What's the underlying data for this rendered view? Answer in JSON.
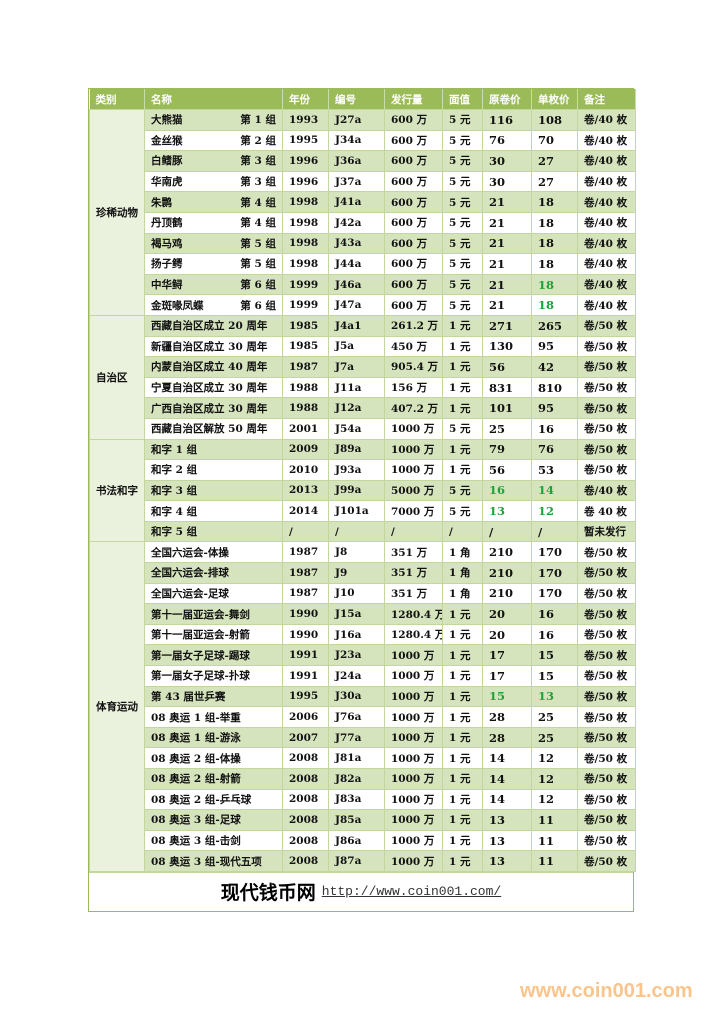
{
  "headers": [
    "类别",
    "名称",
    "年份",
    "编号",
    "发行量",
    "面值",
    "原卷价",
    "单枚价",
    "备注"
  ],
  "groups": [
    {
      "category": "珍稀动物",
      "rows": [
        {
          "name": "大熊猫",
          "set": "第 1 组",
          "year": "1993",
          "code": "J27a",
          "issue": "600 万",
          "face": "5 元",
          "roll": "116",
          "single": "108",
          "note": "卷/40 枚"
        },
        {
          "name": "金丝猴",
          "set": "第 2 组",
          "year": "1995",
          "code": "J34a",
          "issue": "600 万",
          "face": "5 元",
          "roll": "76",
          "single": "70",
          "note": "卷/40 枚"
        },
        {
          "name": "白鳍豚",
          "set": "第 3 组",
          "year": "1996",
          "code": "J36a",
          "issue": "600 万",
          "face": "5 元",
          "roll": "30",
          "single": "27",
          "note": "卷/40 枚"
        },
        {
          "name": "华南虎",
          "set": "第 3 组",
          "year": "1996",
          "code": "J37a",
          "issue": "600 万",
          "face": "5 元",
          "roll": "30",
          "single": "27",
          "note": "卷/40 枚"
        },
        {
          "name": "朱鹮",
          "set": "第 4 组",
          "year": "1998",
          "code": "J41a",
          "issue": "600 万",
          "face": "5 元",
          "roll": "21",
          "single": "18",
          "note": "卷/40 枚"
        },
        {
          "name": "丹顶鹤",
          "set": "第 4 组",
          "year": "1998",
          "code": "J42a",
          "issue": "600 万",
          "face": "5 元",
          "roll": "21",
          "single": "18",
          "note": "卷/40 枚"
        },
        {
          "name": "褐马鸡",
          "set": "第 5 组",
          "year": "1998",
          "code": "J43a",
          "issue": "600 万",
          "face": "5 元",
          "roll": "21",
          "single": "18",
          "note": "卷/40 枚"
        },
        {
          "name": "扬子鳄",
          "set": "第 5 组",
          "year": "1998",
          "code": "J44a",
          "issue": "600 万",
          "face": "5 元",
          "roll": "21",
          "single": "18",
          "note": "卷/40 枚"
        },
        {
          "name": "中华鲟",
          "set": "第 6 组",
          "year": "1999",
          "code": "J46a",
          "issue": "600 万",
          "face": "5 元",
          "roll": "21",
          "single": "18",
          "note": "卷/40 枚",
          "hi_single": true
        },
        {
          "name": "金斑喙凤蝶",
          "set": "第 6 组",
          "year": "1999",
          "code": "J47a",
          "issue": "600 万",
          "face": "5 元",
          "roll": "21",
          "single": "18",
          "note": "卷/40 枚",
          "hi_single": true
        }
      ]
    },
    {
      "category": "自治区",
      "rows": [
        {
          "name": "西藏自治区成立 20 周年",
          "year": "1985",
          "code": "J4a1",
          "issue": "261.2 万",
          "face": "1 元",
          "roll": "271",
          "single": "265",
          "note": "卷/50 枚"
        },
        {
          "name": "新疆自治区成立 30 周年",
          "year": "1985",
          "code": "J5a",
          "issue": "450 万",
          "face": "1 元",
          "roll": "130",
          "single": "95",
          "note": "卷/50 枚"
        },
        {
          "name": "内蒙自治区成立 40 周年",
          "year": "1987",
          "code": "J7a",
          "issue": "905.4 万",
          "face": "1 元",
          "roll": "56",
          "single": "42",
          "note": "卷/50 枚"
        },
        {
          "name": "宁夏自治区成立 30 周年",
          "year": "1988",
          "code": "J11a",
          "issue": "156 万",
          "face": "1 元",
          "roll": "831",
          "single": "810",
          "note": "卷/50 枚"
        },
        {
          "name": "广西自治区成立 30 周年",
          "year": "1988",
          "code": "J12a",
          "issue": "407.2 万",
          "face": "1 元",
          "roll": "101",
          "single": "95",
          "note": "卷/50 枚"
        },
        {
          "name": "西藏自治区解放 50 周年",
          "year": "2001",
          "code": "J54a",
          "issue": "1000 万",
          "face": "5 元",
          "roll": "25",
          "single": "16",
          "note": "卷/50 枚"
        }
      ]
    },
    {
      "category": "书法和字",
      "rows": [
        {
          "name": "和字 1 组",
          "year": "2009",
          "code": "J89a",
          "issue": "1000 万",
          "face": "1 元",
          "roll": "79",
          "single": "76",
          "note": "卷/50 枚"
        },
        {
          "name": "和字 2 组",
          "year": "2010",
          "code": "J93a",
          "issue": "1000 万",
          "face": "1 元",
          "roll": "56",
          "single": "53",
          "note": "卷/50 枚"
        },
        {
          "name": "和字 3 组",
          "year": "2013",
          "code": "J99a",
          "issue": "5000 万",
          "face": "5 元",
          "roll": "16",
          "single": "14",
          "note": "卷/40 枚",
          "hi_roll": true,
          "hi_single": true
        },
        {
          "name": "和字 4 组",
          "year": "2014",
          "code": "J101a",
          "issue": "7000 万",
          "face": "5 元",
          "roll": "13",
          "single": "12",
          "note": "卷 40 枚",
          "hi_roll": true,
          "hi_single": true
        },
        {
          "name": "和字 5 组",
          "year": "/",
          "code": "/",
          "issue": "/",
          "face": "/",
          "roll": "/",
          "single": "/",
          "note": "暂未发行"
        }
      ]
    },
    {
      "category": "体育运动",
      "rows": [
        {
          "name": "全国六运会-体操",
          "year": "1987",
          "code": "J8",
          "issue": "351 万",
          "face": "1 角",
          "roll": "210",
          "single": "170",
          "note": "卷/50 枚"
        },
        {
          "name": "全国六运会-排球",
          "year": "1987",
          "code": "J9",
          "issue": "351 万",
          "face": "1 角",
          "roll": "210",
          "single": "170",
          "note": "卷/50 枚"
        },
        {
          "name": "全国六运会-足球",
          "year": "1987",
          "code": "J10",
          "issue": "351 万",
          "face": "1 角",
          "roll": "210",
          "single": "170",
          "note": "卷/50 枚"
        },
        {
          "name": "第十一届亚运会-舞剑",
          "year": "1990",
          "code": "J15a",
          "issue": "1280.4 万",
          "face": "1 元",
          "roll": "20",
          "single": "16",
          "note": "卷/50 枚"
        },
        {
          "name": "第十一届亚运会-射箭",
          "year": "1990",
          "code": "J16a",
          "issue": "1280.4 万",
          "face": "1 元",
          "roll": "20",
          "single": "16",
          "note": "卷/50 枚"
        },
        {
          "name": "第一届女子足球-踢球",
          "year": "1991",
          "code": "J23a",
          "issue": "1000 万",
          "face": "1 元",
          "roll": "17",
          "single": "15",
          "note": "卷/50 枚"
        },
        {
          "name": "第一届女子足球-扑球",
          "year": "1991",
          "code": "J24a",
          "issue": "1000 万",
          "face": "1 元",
          "roll": "17",
          "single": "15",
          "note": "卷/50 枚"
        },
        {
          "name": "第 43 届世乒赛",
          "year": "1995",
          "code": "J30a",
          "issue": "1000 万",
          "face": "1 元",
          "roll": "15",
          "single": "13",
          "note": "卷/50 枚",
          "hi_roll": true,
          "hi_single": true
        },
        {
          "name": "08 奥运 1 组-举重",
          "year": "2006",
          "code": "J76a",
          "issue": "1000 万",
          "face": "1 元",
          "roll": "28",
          "single": "25",
          "note": "卷/50 枚"
        },
        {
          "name": "08 奥运 1 组-游泳",
          "year": "2007",
          "code": "J77a",
          "issue": "1000 万",
          "face": "1 元",
          "roll": "28",
          "single": "25",
          "note": "卷/50 枚"
        },
        {
          "name": "08 奥运 2 组-体操",
          "year": "2008",
          "code": "J81a",
          "issue": "1000 万",
          "face": "1 元",
          "roll": "14",
          "single": "12",
          "note": "卷/50 枚"
        },
        {
          "name": "08 奥运 2 组-射箭",
          "year": "2008",
          "code": "J82a",
          "issue": "1000 万",
          "face": "1 元",
          "roll": "14",
          "single": "12",
          "note": "卷/50 枚"
        },
        {
          "name": "08 奥运 2 组-乒乓球",
          "year": "2008",
          "code": "J83a",
          "issue": "1000 万",
          "face": "1 元",
          "roll": "14",
          "single": "12",
          "note": "卷/50 枚"
        },
        {
          "name": "08 奥运 3 组-足球",
          "year": "2008",
          "code": "J85a",
          "issue": "1000 万",
          "face": "1 元",
          "roll": "13",
          "single": "11",
          "note": "卷/50 枚"
        },
        {
          "name": "08 奥运 3 组-击剑",
          "year": "2008",
          "code": "J86a",
          "issue": "1000 万",
          "face": "1 元",
          "roll": "13",
          "single": "11",
          "note": "卷/50 枚"
        },
        {
          "name": "08 奥运 3 组-现代五项",
          "year": "2008",
          "code": "J87a",
          "issue": "1000 万",
          "face": "1 元",
          "roll": "13",
          "single": "11",
          "note": "卷/50 枚"
        }
      ]
    }
  ],
  "footer": {
    "site_name": "现代钱币网",
    "url": "http://www.coin001.com/"
  },
  "watermark": "www.coin001.com",
  "colors": {
    "header": "#9bbb59",
    "row_alt": "#d6e4bd",
    "highlight": "#1fa23a",
    "watermark": "#f9c58c"
  }
}
